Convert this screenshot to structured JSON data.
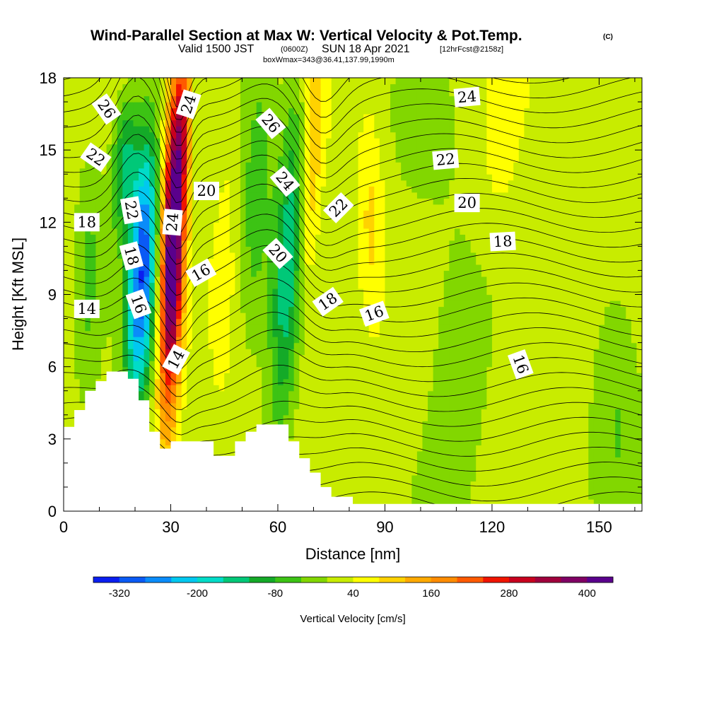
{
  "title": {
    "main": "Wind-Parallel Section at Max W: Vertical Velocity & Pot.Temp.",
    "copyright": "(C)",
    "valid_prefix": "Valid 1500 JST",
    "valid_utc": "(0600Z)",
    "valid_date": "SUN 18 Apr 2021",
    "forecast": "[12hrFcst@2158z]",
    "box": "boxWmax=343@36.41,137.99,1990m"
  },
  "colors": {
    "terrain": "#ffffff",
    "contour": "#000000",
    "palette": [
      "#0a1ef0",
      "#0a5af5",
      "#0a8cfa",
      "#00c8f0",
      "#00dcc8",
      "#00c878",
      "#14aa28",
      "#3cc314",
      "#82d700",
      "#c8ec00",
      "#ffff00",
      "#ffd200",
      "#ffaa00",
      "#ff8c00",
      "#ff5a00",
      "#f01400",
      "#c8001e",
      "#a0003c",
      "#800064",
      "#5a008c"
    ]
  },
  "chart_data": {
    "type": "heatmap",
    "xlabel": "Distance [nm]",
    "ylabel": "Height [Kft MSL]",
    "xlim": [
      0,
      162
    ],
    "ylim": [
      0,
      18
    ],
    "xticks": [
      0,
      30,
      60,
      90,
      120,
      150
    ],
    "yticks": [
      0,
      3,
      6,
      9,
      12,
      15,
      18
    ],
    "colorbar": {
      "label": "Vertical Velocity [cm/s]",
      "ticks": [
        -320,
        -200,
        -80,
        40,
        160,
        280,
        400
      ],
      "min": -360,
      "max": 440,
      "step": 40
    },
    "terrain_kft": [
      [
        0,
        3.5
      ],
      [
        3,
        3.5
      ],
      [
        3,
        4.2
      ],
      [
        6,
        4.2
      ],
      [
        6,
        5.0
      ],
      [
        9,
        5.0
      ],
      [
        9,
        5.4
      ],
      [
        12,
        5.4
      ],
      [
        12,
        5.8
      ],
      [
        18,
        5.8
      ],
      [
        18,
        5.5
      ],
      [
        21,
        5.5
      ],
      [
        21,
        4.6
      ],
      [
        24,
        4.6
      ],
      [
        24,
        3.3
      ],
      [
        27,
        3.3
      ],
      [
        27,
        2.6
      ],
      [
        30,
        2.6
      ],
      [
        30,
        2.9
      ],
      [
        42,
        2.9
      ],
      [
        42,
        2.3
      ],
      [
        48,
        2.3
      ],
      [
        48,
        2.9
      ],
      [
        51,
        2.9
      ],
      [
        51,
        3.3
      ],
      [
        54,
        3.3
      ],
      [
        54,
        3.6
      ],
      [
        63,
        3.6
      ],
      [
        63,
        2.9
      ],
      [
        66,
        2.9
      ],
      [
        66,
        2.2
      ],
      [
        69,
        2.2
      ],
      [
        69,
        1.6
      ],
      [
        72,
        1.6
      ],
      [
        72,
        1.0
      ],
      [
        75,
        1.0
      ],
      [
        75,
        0.6
      ],
      [
        81,
        0.6
      ],
      [
        81,
        0.3
      ],
      [
        90,
        0.3
      ],
      [
        162,
        0.3
      ]
    ],
    "vertical_velocity_features": [
      {
        "x": 30.5,
        "z": 11.0,
        "sx": 2.2,
        "sz": 4.8,
        "tilt": 0.2,
        "w": 460
      },
      {
        "x": 33.5,
        "z": 16.0,
        "sx": 1.6,
        "sz": 2.5,
        "tilt": 0.2,
        "w": 120
      },
      {
        "x": 22.0,
        "z": 10.0,
        "sx": 2.8,
        "sz": 4.0,
        "tilt": 0.3,
        "w": -330
      },
      {
        "x": 17.0,
        "z": 14.5,
        "sx": 2.5,
        "sz": 2.0,
        "tilt": 0.3,
        "w": -150
      },
      {
        "x": 63.0,
        "z": 10.5,
        "sx": 3.0,
        "sz": 5.0,
        "tilt": 0.35,
        "w": -170
      },
      {
        "x": 54.0,
        "z": 13.0,
        "sx": 3.0,
        "sz": 4.0,
        "tilt": 0.3,
        "w": -90
      },
      {
        "x": 69.0,
        "z": 14.0,
        "sx": 2.2,
        "sz": 4.0,
        "tilt": 0.3,
        "w": 110
      },
      {
        "x": 86.0,
        "z": 12.0,
        "sx": 2.5,
        "sz": 3.0,
        "tilt": 0.0,
        "w": 70
      },
      {
        "x": 45.0,
        "z": 10.0,
        "sx": 2.0,
        "sz": 5.0,
        "tilt": 0.2,
        "w": 30
      },
      {
        "x": 7.0,
        "z": 10.0,
        "sx": 2.5,
        "sz": 4.0,
        "tilt": 0.1,
        "w": -60
      },
      {
        "x": 110.0,
        "z": 6.0,
        "sx": 6.0,
        "sz": 4.5,
        "tilt": 0.0,
        "w": -50
      },
      {
        "x": 122.0,
        "z": 15.0,
        "sx": 4.0,
        "sz": 2.5,
        "tilt": 0.0,
        "w": 30
      },
      {
        "x": 141.0,
        "z": 10.0,
        "sx": 3.0,
        "sz": 3.5,
        "tilt": 0.0,
        "w": 20
      },
      {
        "x": 155.0,
        "z": 5.0,
        "sx": 5.0,
        "sz": 4.0,
        "tilt": 0.0,
        "w": -60
      },
      {
        "x": 100.0,
        "z": 15.5,
        "sx": 6.0,
        "sz": 2.5,
        "tilt": 0.0,
        "w": -30
      }
    ],
    "background_w": 20,
    "contour_labels": [
      {
        "x": 12,
        "z": 16.7,
        "text": "26",
        "angle": 55
      },
      {
        "x": 9,
        "z": 14.7,
        "text": "22",
        "angle": 35
      },
      {
        "x": 6.5,
        "z": 12.0,
        "text": "18",
        "angle": 0
      },
      {
        "x": 6.5,
        "z": 8.4,
        "text": "14",
        "angle": 0
      },
      {
        "x": 19,
        "z": 12.5,
        "text": "22",
        "angle": 80
      },
      {
        "x": 19,
        "z": 10.6,
        "text": "18",
        "angle": 75
      },
      {
        "x": 21,
        "z": 8.6,
        "text": "16",
        "angle": 70
      },
      {
        "x": 35,
        "z": 16.9,
        "text": "24",
        "angle": -72
      },
      {
        "x": 40,
        "z": 13.3,
        "text": "20",
        "angle": 0
      },
      {
        "x": 30.5,
        "z": 12.0,
        "text": "24",
        "angle": -85
      },
      {
        "x": 38.5,
        "z": 9.9,
        "text": "16",
        "angle": -30
      },
      {
        "x": 31.5,
        "z": 6.3,
        "text": "14",
        "angle": -62
      },
      {
        "x": 58,
        "z": 16.1,
        "text": "26",
        "angle": 50
      },
      {
        "x": 62,
        "z": 13.7,
        "text": "24",
        "angle": 50
      },
      {
        "x": 60,
        "z": 10.7,
        "text": "20",
        "angle": 48
      },
      {
        "x": 77,
        "z": 12.6,
        "text": "22",
        "angle": -45
      },
      {
        "x": 74,
        "z": 8.7,
        "text": "18",
        "angle": -35
      },
      {
        "x": 87,
        "z": 8.2,
        "text": "16",
        "angle": -20
      },
      {
        "x": 113,
        "z": 17.2,
        "text": "24",
        "angle": -5
      },
      {
        "x": 107,
        "z": 14.6,
        "text": "22",
        "angle": -5
      },
      {
        "x": 113,
        "z": 12.8,
        "text": "20",
        "angle": 0
      },
      {
        "x": 123,
        "z": 11.2,
        "text": "18",
        "angle": -3
      },
      {
        "x": 128,
        "z": 6.1,
        "text": "16",
        "angle": 70
      }
    ]
  }
}
